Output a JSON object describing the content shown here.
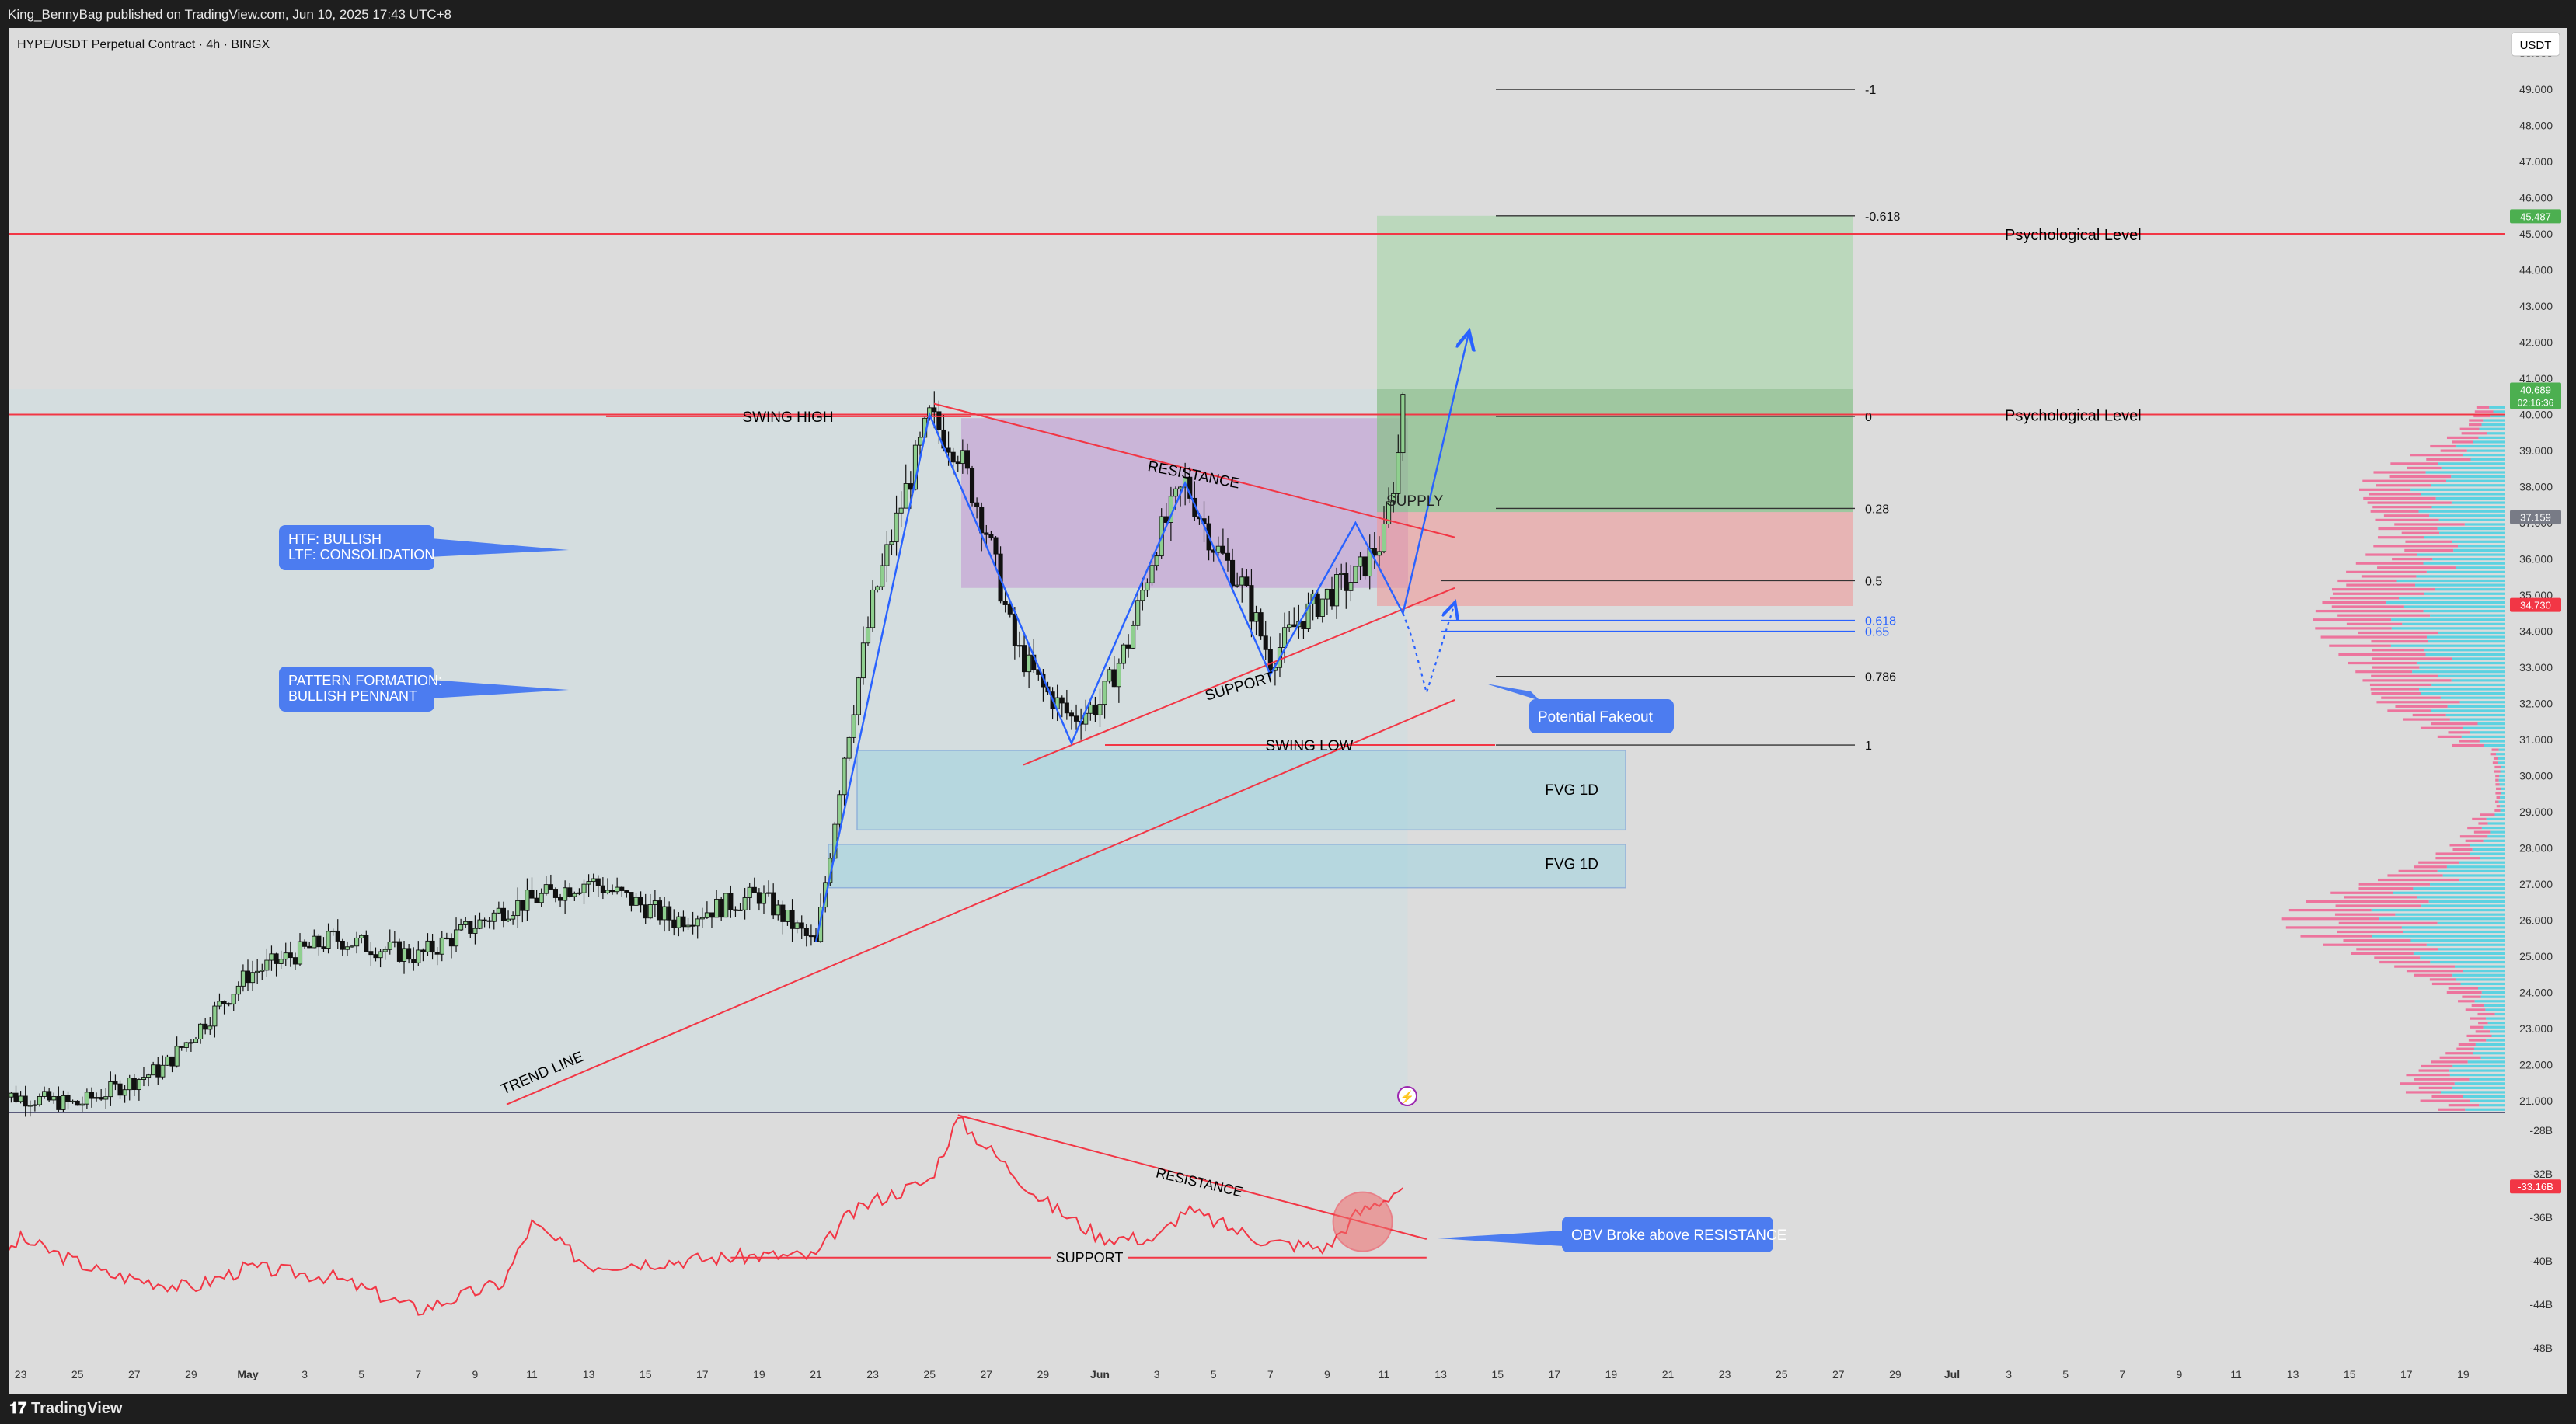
{
  "header": {
    "publish_text": "King_BennyBag published on TradingView.com, Jun 10, 2025 17:43 UTC+8"
  },
  "footer": {
    "brand": "TradingView",
    "logo_icon": "tradingview-logo-icon"
  },
  "chart_data": {
    "type": "candlestick",
    "symbol_title": "HYPE/USDT Perpetual Contract · 4h · BINGX",
    "currency_button": "USDT",
    "timeframe": "4h",
    "y_axis": {
      "ticks": [
        "21.000",
        "22.000",
        "23.000",
        "24.000",
        "25.000",
        "26.000",
        "27.000",
        "28.000",
        "29.000",
        "30.000",
        "31.000",
        "32.000",
        "33.000",
        "34.000",
        "35.000",
        "36.000",
        "37.000",
        "38.000",
        "39.000",
        "40.000",
        "41.000",
        "42.000",
        "43.000",
        "44.000",
        "45.000",
        "46.000",
        "47.000",
        "48.000",
        "49.000",
        "50.000"
      ],
      "range": [
        20.7,
        50.7
      ]
    },
    "x_axis": {
      "ticks": [
        "23",
        "25",
        "27",
        "29",
        "May",
        "3",
        "5",
        "7",
        "9",
        "11",
        "13",
        "15",
        "17",
        "19",
        "21",
        "23",
        "25",
        "27",
        "29",
        "Jun",
        "3",
        "5",
        "7",
        "9",
        "11",
        "13",
        "15",
        "17",
        "19",
        "21",
        "23",
        "25",
        "27",
        "29",
        "Jul",
        "3",
        "5",
        "7",
        "9",
        "11",
        "13",
        "15",
        "17",
        "19"
      ],
      "bold_ticks": [
        "May",
        "Jun",
        "Jul"
      ]
    },
    "price_badges": [
      {
        "value": "45.487",
        "color": "#4caf50"
      },
      {
        "value": "40.689",
        "sub": "02:16:36",
        "color": "#4caf50"
      },
      {
        "value": "37.159",
        "color": "#787b86"
      },
      {
        "value": "34.730",
        "color": "#f23645"
      }
    ],
    "candles_keypoints": [
      [
        "Apr 22",
        21.2
      ],
      [
        "Apr 25",
        20.9
      ],
      [
        "Apr 28",
        21.9
      ],
      [
        "May 1",
        24.5
      ],
      [
        "May 4",
        25.5
      ],
      [
        "May 7",
        25.0
      ],
      [
        "May 10",
        26.3
      ],
      [
        "May 13",
        27.1
      ],
      [
        "May 16",
        26.0
      ],
      [
        "May 19",
        26.7
      ],
      [
        "May 21",
        25.3
      ],
      [
        "May 22",
        30.6
      ],
      [
        "May 23",
        34.8
      ],
      [
        "May 24",
        37.5
      ],
      [
        "May 25",
        39.9
      ],
      [
        "May 26",
        39.0
      ],
      [
        "May 27",
        36.8
      ],
      [
        "May 28",
        33.6
      ],
      [
        "May 29",
        32.4
      ],
      [
        "May 30",
        31.6
      ],
      [
        "May 31",
        32.0
      ],
      [
        "Jun 1",
        33.7
      ],
      [
        "Jun 2",
        36.5
      ],
      [
        "Jun 3",
        38.1
      ],
      [
        "Jun 4",
        36.4
      ],
      [
        "Jun 5",
        35.3
      ],
      [
        "Jun 6",
        33.2
      ],
      [
        "Jun 7",
        34.3
      ],
      [
        "Jun 8",
        35.0
      ],
      [
        "Jun 9",
        35.5
      ],
      [
        "Jun 10",
        36.6
      ],
      [
        "Jun 10 12h",
        38.9
      ],
      [
        "Jun 10 16h",
        40.69
      ]
    ],
    "fib_levels": [
      {
        "label": "-1",
        "price": 49.0
      },
      {
        "label": "-0.618",
        "price": 45.5
      },
      {
        "label": "0",
        "price": 39.95
      },
      {
        "label": "0.28",
        "price": 37.4
      },
      {
        "label": "0.5",
        "price": 35.4
      },
      {
        "label": "0.618",
        "price": 34.3,
        "color": "#2962ff"
      },
      {
        "label": "0.65",
        "price": 34.0,
        "color": "#2962ff"
      },
      {
        "label": "0.786",
        "price": 32.75
      },
      {
        "label": "1",
        "price": 30.85
      }
    ],
    "horizontal_levels": [
      {
        "label": "Psychological Level",
        "price": 45.0,
        "color": "#f23645"
      },
      {
        "label": "Psychological Level",
        "price": 40.0,
        "color": "#f23645"
      }
    ],
    "annotations": {
      "swing_high": "SWING HIGH",
      "swing_low": "SWING LOW",
      "resistance": "RESISTANCE",
      "support": "SUPPORT",
      "trend_line": "TREND LINE",
      "supply": "SUPPLY",
      "fvg": [
        "FVG 1D",
        "FVG 1D"
      ],
      "callout_htf": [
        "HTF: BULLISH",
        "LTF: CONSOLIDATION"
      ],
      "callout_pattern": [
        "PATTERN FORMATION:",
        "BULLISH PENNANT"
      ],
      "callout_fakeout": "Potential Fakeout"
    },
    "zones": [
      {
        "name": "demand-box",
        "price_top": 39.9,
        "price_bottom": 35.2,
        "color": "#c39bd3"
      },
      {
        "name": "fvg-upper",
        "price_top": 30.7,
        "price_bottom": 28.5,
        "color": "#9fd3e0"
      },
      {
        "name": "fvg-lower",
        "price_top": 28.1,
        "price_bottom": 26.9,
        "color": "#9fd3e0"
      },
      {
        "name": "target-zone",
        "price_top": 45.5,
        "price_bottom": 37.3,
        "color": "#a5d6a7"
      },
      {
        "name": "stop-zone",
        "price_top": 37.3,
        "price_bottom": 34.7,
        "color": "#ef9a9a"
      }
    ],
    "obv": {
      "name": "OBV",
      "ticks": [
        "-28B",
        "-32B",
        "-36B",
        "-40B",
        "-44B",
        "-48B"
      ],
      "range": [
        -49.5,
        -26.5
      ],
      "last_value": "-33.16B",
      "resistance": "RESISTANCE",
      "support": "SUPPORT",
      "callout": "OBV Broke above RESISTANCE",
      "keypoints": [
        [
          "Apr 22",
          -40.5
        ],
        [
          "Apr 23",
          -38.0
        ],
        [
          "Apr 26",
          -41.2
        ],
        [
          "Apr 29",
          -42.5
        ],
        [
          "May 1",
          -40.6
        ],
        [
          "May 4",
          -41.5
        ],
        [
          "May 7",
          -44.5
        ],
        [
          "May 10",
          -42.0
        ],
        [
          "May 11",
          -36.6
        ],
        [
          "May 13",
          -40.4
        ],
        [
          "May 16",
          -40.0
        ],
        [
          "May 19",
          -39.5
        ],
        [
          "May 21",
          -39.6
        ],
        [
          "May 22",
          -36.2
        ],
        [
          "May 23",
          -34.5
        ],
        [
          "May 25",
          -32.6
        ],
        [
          "May 26",
          -27.0
        ],
        [
          "May 27",
          -29.5
        ],
        [
          "May 29",
          -34.5
        ],
        [
          "May 31",
          -37.8
        ],
        [
          "Jun 2",
          -38.0
        ],
        [
          "Jun 3",
          -35.3
        ],
        [
          "Jun 5",
          -37.4
        ],
        [
          "Jun 6",
          -38.3
        ],
        [
          "Jun 8",
          -38.8
        ],
        [
          "Jun 9",
          -35.8
        ],
        [
          "Jun 10",
          -34.3
        ],
        [
          "Jun 10 16h",
          -33.16
        ]
      ]
    },
    "volume_profile": "visible-range volume profile, right side (blue = up volume, pink = down volume)"
  }
}
